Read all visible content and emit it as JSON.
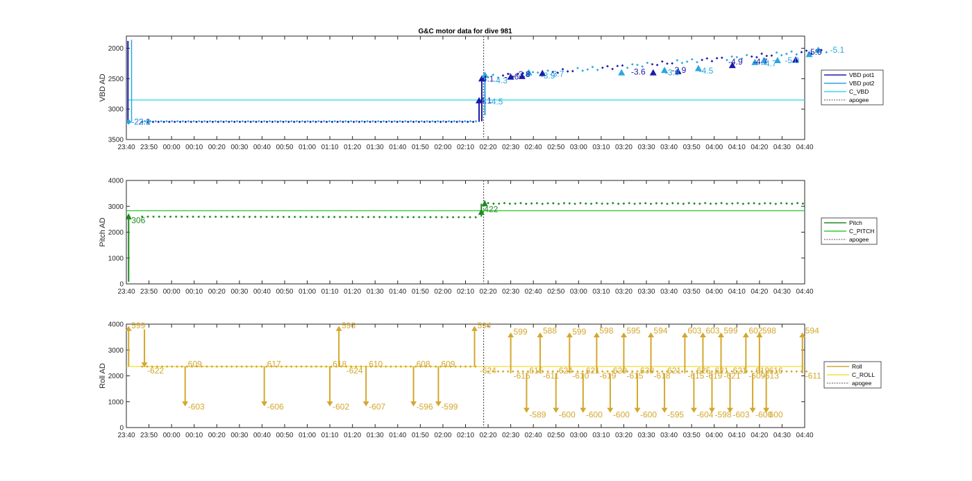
{
  "title": "G&C motor data for dive 981",
  "time_ticks": [
    "23:40",
    "23:50",
    "00:00",
    "00:10",
    "00:20",
    "00:30",
    "00:40",
    "00:50",
    "01:00",
    "01:10",
    "01:20",
    "01:30",
    "01:40",
    "01:50",
    "02:00",
    "02:10",
    "02:20",
    "02:30",
    "02:40",
    "02:50",
    "03:00",
    "03:10",
    "03:20",
    "03:30",
    "03:40",
    "03:50",
    "04:00",
    "04:10",
    "04:20",
    "04:30",
    "04:40"
  ],
  "colors": {
    "vbd_pot1": "#1a1aa8",
    "vbd_pot2": "#2aa6e0",
    "c_vbd": "#33dde6",
    "pitch": "#1e8a1e",
    "c_pitch": "#33cc33",
    "roll": "#d4a72c",
    "c_roll": "#f0e040",
    "apogee": "#555555"
  },
  "chart_data": [
    {
      "type": "scatter",
      "name": "vbd",
      "ylabel": "VBD AD",
      "ylim": [
        3500,
        1800
      ],
      "y_ticks": [
        "2000",
        "2500",
        "3000",
        "3500"
      ],
      "y_tick_values": [
        2000,
        2500,
        3000,
        3500
      ],
      "series": [
        {
          "name": "VBD pot1",
          "style": "markers"
        },
        {
          "name": "VBD pot2",
          "style": "markers"
        },
        {
          "name": "C_VBD",
          "style": "line",
          "y": 2850
        },
        {
          "name": "apogee",
          "style": "dotted",
          "x_minutes": 158
        }
      ],
      "baseline_before_apogee": 3210,
      "annotations": [
        {
          "text": "-22.1",
          "x_minutes": 1,
          "y": 3210,
          "series": "VBD pot1"
        },
        {
          "text": "-23.8",
          "x_minutes": 1,
          "y": 3210,
          "series": "VBD pot2"
        },
        {
          "text": "-4.1",
          "x_minutes": 155,
          "y": 2500,
          "series": "VBD pot1"
        },
        {
          "text": "-4.1",
          "x_minutes": 154,
          "y": 2860,
          "series": "VBD pot1"
        },
        {
          "text": "-4.5",
          "x_minutes": 159,
          "y": 2880,
          "series": "VBD pot2"
        },
        {
          "text": "-4.3",
          "x_minutes": 161,
          "y": 2530,
          "series": "VBD pot2"
        },
        {
          "text": "-3.6",
          "x_minutes": 166,
          "y": 2470,
          "series": "VBD pot1"
        },
        {
          "text": "-3.8",
          "x_minutes": 171,
          "y": 2430,
          "series": "VBD pot1"
        },
        {
          "text": "-3.9",
          "x_minutes": 182,
          "y": 2450,
          "series": "VBD pot2"
        },
        {
          "text": "-3.7",
          "x_minutes": 186,
          "y": 2420,
          "series": "VBD pot2"
        },
        {
          "text": "-3.6",
          "x_minutes": 222,
          "y": 2390,
          "series": "VBD pot1"
        },
        {
          "text": "-3.9",
          "x_minutes": 240,
          "y": 2360,
          "series": "VBD pot1"
        },
        {
          "text": "-3.8",
          "x_minutes": 237,
          "y": 2400,
          "series": "VBD pot2"
        },
        {
          "text": "-4.5",
          "x_minutes": 252,
          "y": 2370,
          "series": "VBD pot2"
        },
        {
          "text": "-4.9",
          "x_minutes": 265,
          "y": 2220,
          "series": "VBD pot1"
        },
        {
          "text": "-4.7",
          "x_minutes": 276,
          "y": 2220,
          "series": "VBD pot1"
        },
        {
          "text": "-4.7",
          "x_minutes": 280,
          "y": 2250,
          "series": "VBD pot2"
        },
        {
          "text": "-5.0",
          "x_minutes": 290,
          "y": 2200,
          "series": "VBD pot2"
        },
        {
          "text": "-5.0",
          "x_minutes": 300,
          "y": 2060,
          "series": "VBD pot1"
        },
        {
          "text": "-5.1",
          "x_minutes": 310,
          "y": 2030,
          "series": "VBD pot2"
        }
      ]
    },
    {
      "type": "scatter",
      "name": "pitch",
      "ylabel": "Pitch AD",
      "ylim": [
        0,
        4000
      ],
      "y_ticks": [
        "0",
        "1000",
        "2000",
        "3000",
        "4000"
      ],
      "y_tick_values": [
        0,
        1000,
        2000,
        3000,
        4000
      ],
      "series": [
        {
          "name": "Pitch",
          "style": "markers"
        },
        {
          "name": "C_PITCH",
          "style": "line",
          "y": 2830
        },
        {
          "name": "apogee",
          "style": "dotted",
          "x_minutes": 158
        }
      ],
      "annotations": [
        {
          "text": "306",
          "x_minutes": 1,
          "y": 2450,
          "series": "Pitch"
        },
        {
          "text": "422",
          "x_minutes": 157,
          "y": 2880,
          "series": "Pitch"
        }
      ]
    },
    {
      "type": "scatter",
      "name": "roll",
      "ylabel": "Roll AD",
      "ylim": [
        0,
        4000
      ],
      "y_ticks": [
        "0",
        "1000",
        "2000",
        "3000",
        "4000"
      ],
      "y_tick_values": [
        0,
        1000,
        2000,
        3000,
        4000
      ],
      "series": [
        {
          "name": "Roll",
          "style": "markers"
        },
        {
          "name": "C_ROLL",
          "style": "line",
          "y": 2360
        },
        {
          "name": "apogee",
          "style": "dotted",
          "x_minutes": 158
        }
      ],
      "annotations": [
        {
          "text": "599",
          "x_minutes": 1,
          "y": 3950
        },
        {
          "text": "-622",
          "x_minutes": 8,
          "y": 2200
        },
        {
          "text": "609",
          "x_minutes": 26,
          "y": 2450
        },
        {
          "text": "-603",
          "x_minutes": 26,
          "y": 800
        },
        {
          "text": "617",
          "x_minutes": 61,
          "y": 2450
        },
        {
          "text": "-606",
          "x_minutes": 61,
          "y": 800
        },
        {
          "text": "618",
          "x_minutes": 90,
          "y": 2450
        },
        {
          "text": "-602",
          "x_minutes": 90,
          "y": 800
        },
        {
          "text": "596",
          "x_minutes": 94,
          "y": 3950
        },
        {
          "text": "-624",
          "x_minutes": 96,
          "y": 2200
        },
        {
          "text": "610",
          "x_minutes": 106,
          "y": 2450
        },
        {
          "text": "-607",
          "x_minutes": 106,
          "y": 800
        },
        {
          "text": "608",
          "x_minutes": 127,
          "y": 2450
        },
        {
          "text": "-596",
          "x_minutes": 127,
          "y": 800
        },
        {
          "text": "609",
          "x_minutes": 138,
          "y": 2450
        },
        {
          "text": "-599",
          "x_minutes": 138,
          "y": 800
        },
        {
          "text": "594",
          "x_minutes": 154,
          "y": 3950
        },
        {
          "text": "-624",
          "x_minutes": 155,
          "y": 2200
        },
        {
          "text": "599",
          "x_minutes": 170,
          "y": 3700
        },
        {
          "text": "-615",
          "x_minutes": 170,
          "y": 2000
        },
        {
          "text": "615",
          "x_minutes": 177,
          "y": 2200
        },
        {
          "text": "-589",
          "x_minutes": 177,
          "y": 500
        },
        {
          "text": "588",
          "x_minutes": 183,
          "y": 3750
        },
        {
          "text": "-611",
          "x_minutes": 183,
          "y": 2000
        },
        {
          "text": "624",
          "x_minutes": 190,
          "y": 2200
        },
        {
          "text": "-600",
          "x_minutes": 190,
          "y": 500
        },
        {
          "text": "599",
          "x_minutes": 196,
          "y": 3700
        },
        {
          "text": "-610",
          "x_minutes": 196,
          "y": 2000
        },
        {
          "text": "621",
          "x_minutes": 202,
          "y": 2200
        },
        {
          "text": "-600",
          "x_minutes": 202,
          "y": 500
        },
        {
          "text": "598",
          "x_minutes": 208,
          "y": 3750
        },
        {
          "text": "-619",
          "x_minutes": 208,
          "y": 2000
        },
        {
          "text": "629",
          "x_minutes": 214,
          "y": 2200
        },
        {
          "text": "-600",
          "x_minutes": 214,
          "y": 500
        },
        {
          "text": "595",
          "x_minutes": 220,
          "y": 3750
        },
        {
          "text": "-615",
          "x_minutes": 220,
          "y": 2000
        },
        {
          "text": "630",
          "x_minutes": 226,
          "y": 2200
        },
        {
          "text": "-600",
          "x_minutes": 226,
          "y": 500
        },
        {
          "text": "594",
          "x_minutes": 232,
          "y": 3750
        },
        {
          "text": "-618",
          "x_minutes": 232,
          "y": 2000
        },
        {
          "text": "621",
          "x_minutes": 238,
          "y": 2200
        },
        {
          "text": "-595",
          "x_minutes": 238,
          "y": 500
        },
        {
          "text": "603",
          "x_minutes": 247,
          "y": 3750
        },
        {
          "text": "-615",
          "x_minutes": 247,
          "y": 2000
        },
        {
          "text": "625",
          "x_minutes": 251,
          "y": 2200
        },
        {
          "text": "-604",
          "x_minutes": 251,
          "y": 500
        },
        {
          "text": "603",
          "x_minutes": 255,
          "y": 3750
        },
        {
          "text": "-619",
          "x_minutes": 255,
          "y": 2000
        },
        {
          "text": "621",
          "x_minutes": 259,
          "y": 2200
        },
        {
          "text": "-598",
          "x_minutes": 259,
          "y": 500
        },
        {
          "text": "599",
          "x_minutes": 263,
          "y": 3750
        },
        {
          "text": "-621",
          "x_minutes": 263,
          "y": 2000
        },
        {
          "text": "621",
          "x_minutes": 267,
          "y": 2200
        },
        {
          "text": "-603",
          "x_minutes": 267,
          "y": 500
        },
        {
          "text": "602",
          "x_minutes": 274,
          "y": 3750
        },
        {
          "text": "-609",
          "x_minutes": 274,
          "y": 2000
        },
        {
          "text": "619",
          "x_minutes": 277,
          "y": 2200
        },
        {
          "text": "-600",
          "x_minutes": 277,
          "y": 500
        },
        {
          "text": "598",
          "x_minutes": 280,
          "y": 3750
        },
        {
          "text": "-613",
          "x_minutes": 280,
          "y": 2000
        },
        {
          "text": "616",
          "x_minutes": 283,
          "y": 2200
        },
        {
          "text": "600",
          "x_minutes": 283,
          "y": 500
        },
        {
          "text": "594",
          "x_minutes": 299,
          "y": 3750
        },
        {
          "text": "-611",
          "x_minutes": 299,
          "y": 2000
        }
      ]
    }
  ],
  "legends": [
    {
      "entries": [
        "VBD pot1",
        "VBD pot2",
        "C_VBD",
        "apogee"
      ]
    },
    {
      "entries": [
        "Pitch",
        "C_PITCH",
        "apogee"
      ]
    },
    {
      "entries": [
        "Roll",
        "C_ROLL",
        "apogee"
      ]
    }
  ]
}
